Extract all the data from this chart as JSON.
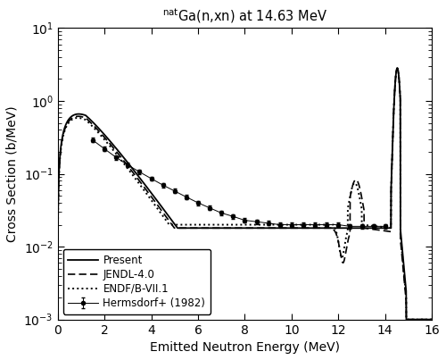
{
  "title_prefix": "nat",
  "title_suffix": "Ga(n,xn) at 14.63 MeV",
  "xlabel": "Emitted Neutron Energy (MeV)",
  "ylabel": "Cross Section (b/MeV)",
  "xlim": [
    0,
    16
  ],
  "ylim": [
    0.001,
    10
  ],
  "xticks": [
    0,
    2,
    4,
    6,
    8,
    10,
    12,
    14,
    16
  ],
  "legend_entries": [
    "Present",
    "JENDL-4.0",
    "ENDF/B-VII.1",
    "Hermsdorf+ (1982)"
  ]
}
